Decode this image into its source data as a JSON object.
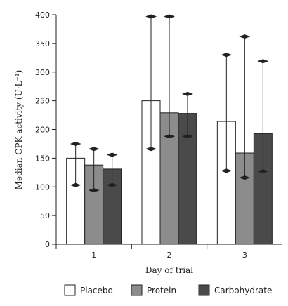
{
  "chart_data": {
    "type": "bar",
    "title": "",
    "xlabel": "Day of trial",
    "ylabel": "Median CPK activity (U·L⁻¹)",
    "ylim": [
      0,
      400
    ],
    "yticks": [
      0,
      50,
      100,
      150,
      200,
      250,
      300,
      350,
      400
    ],
    "categories": [
      "1",
      "2",
      "3"
    ],
    "series": [
      {
        "name": "Placebo",
        "color": "#ffffff",
        "values": [
          150,
          250,
          214
        ],
        "err_low": [
          103,
          166,
          128
        ],
        "err_high": [
          175,
          397,
          330
        ]
      },
      {
        "name": "Protein",
        "color": "#8c8c8c",
        "values": [
          138,
          229,
          159
        ],
        "err_low": [
          94,
          188,
          116
        ],
        "err_high": [
          166,
          397,
          362
        ]
      },
      {
        "name": "Carbohydrate",
        "color": "#4a4a4a",
        "values": [
          131,
          228,
          193
        ],
        "err_low": [
          103,
          188,
          127
        ],
        "err_high": [
          156,
          262,
          319
        ]
      }
    ],
    "legend_position": "bottom"
  }
}
